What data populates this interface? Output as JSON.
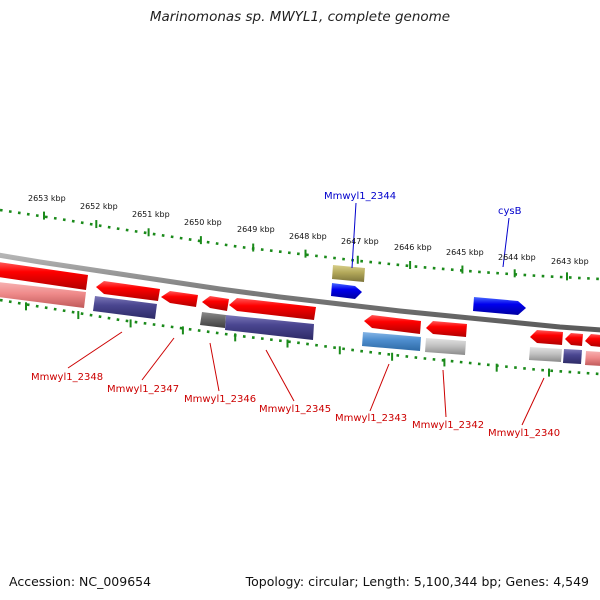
{
  "title": "Marinomonas sp. MWYL1, complete genome",
  "footer": {
    "accession": "Accession: NC_009654",
    "summary": "Topology: circular; Length: 5,100,344 bp; Genes: 4,549"
  },
  "colors": {
    "backbone": "#8a8a8a",
    "tick": "#1a8a1a",
    "red_gene": "#ee0000",
    "red_label": "#cc0000",
    "blue_label": "#0000cc",
    "blue_gene": "#0000ee",
    "navy_block": "#4a4690",
    "steel_block": "#4f8fd0",
    "olive_block": "#b3a85a",
    "gray_block": "#bdbdbd",
    "pink_block": "#ef8a8a",
    "dark_block": "#666666"
  },
  "ticks": [
    {
      "label": "2653 kbp"
    },
    {
      "label": "2652 kbp"
    },
    {
      "label": "2651 kbp"
    },
    {
      "label": "2650 kbp"
    },
    {
      "label": "2649 kbp"
    },
    {
      "label": "2648 kbp"
    },
    {
      "label": "2647 kbp"
    },
    {
      "label": "2646 kbp"
    },
    {
      "label": "2645 kbp"
    },
    {
      "label": "2644 kbp"
    },
    {
      "label": "2643 kbp"
    }
  ],
  "top_labels": [
    {
      "text": "Mmwyl1_2344"
    },
    {
      "text": "cysB"
    }
  ],
  "bottom_labels": [
    {
      "text": "Mmwyl1_2348"
    },
    {
      "text": "Mmwyl1_2347"
    },
    {
      "text": "Mmwyl1_2346"
    },
    {
      "text": "Mmwyl1_2345"
    },
    {
      "text": "Mmwyl1_2343"
    },
    {
      "text": "Mmwyl1_2342"
    },
    {
      "text": "Mmwyl1_2340"
    }
  ]
}
